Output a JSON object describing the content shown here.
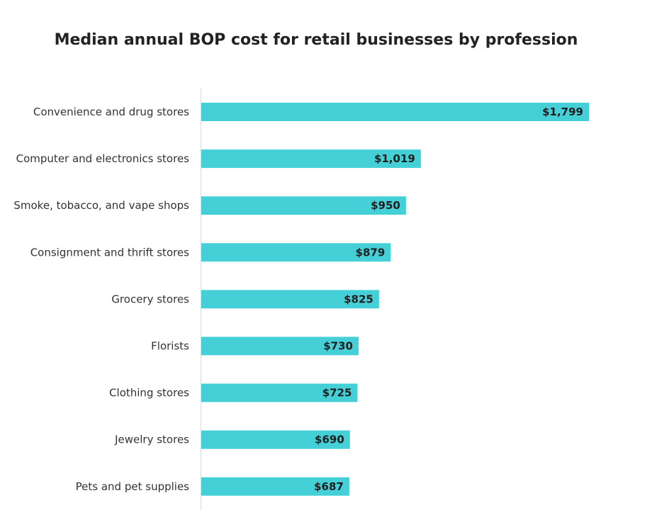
{
  "chart_data": {
    "type": "bar",
    "orientation": "horizontal",
    "title": "Median annual BOP cost for retail businesses by profession",
    "xlabel": "",
    "ylabel": "",
    "categories": [
      "Convenience and drug stores",
      "Computer and electronics stores",
      "Smoke, tobacco, and vape shops",
      "Consignment and thrift stores",
      "Grocery stores",
      "Florists",
      "Clothing stores",
      "Jewelry stores",
      "Pets and pet supplies"
    ],
    "values": [
      1799,
      1019,
      950,
      879,
      825,
      730,
      725,
      690,
      687
    ],
    "data_labels": [
      "$1,799",
      "$1,019",
      "$950",
      "$879",
      "$825",
      "$730",
      "$725",
      "$690",
      "$687"
    ],
    "xlim": [
      0,
      1799
    ],
    "grid": false,
    "legend": "none",
    "bar_color": "#45d0d8"
  }
}
